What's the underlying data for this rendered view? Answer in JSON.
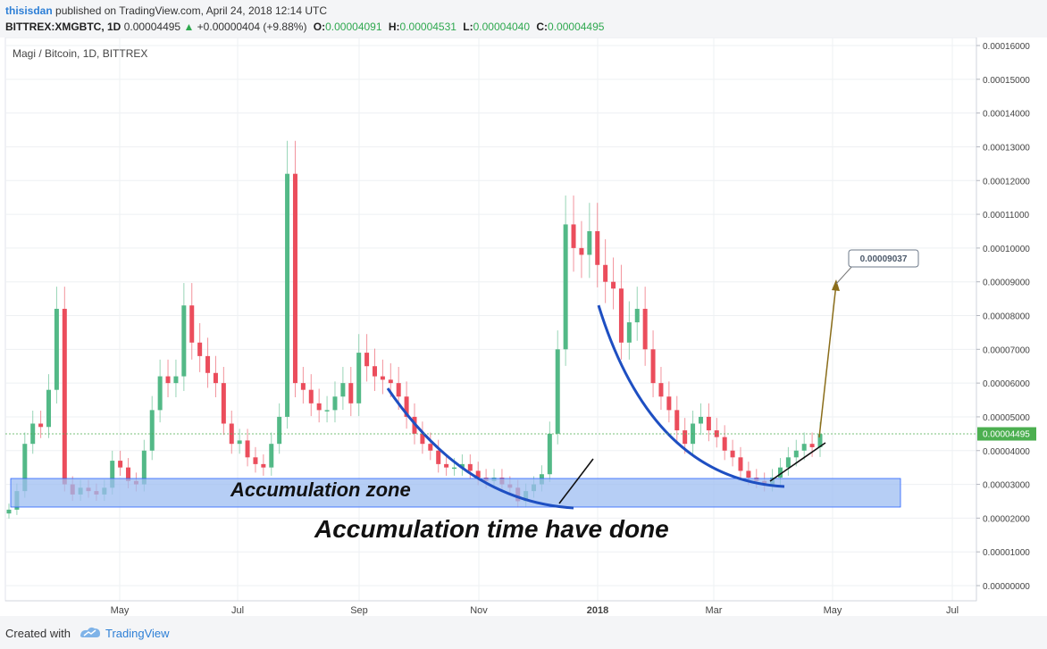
{
  "header": {
    "user": "thisisdan",
    "published_text": "published on TradingView.com, April 24, 2018 12:14 UTC",
    "symbol": "BITTREX:XMGBTC, 1D",
    "last": "0.00004495",
    "arrow": "▲",
    "change": "+0.00000404 (+9.88%)",
    "o_label": "O:",
    "o_value": "0.00004091",
    "h_label": "H:",
    "h_value": "0.00004531",
    "l_label": "L:",
    "l_value": "0.00004040",
    "c_label": "C:",
    "c_value": "0.00004495"
  },
  "chart_data": {
    "type": "candlestick",
    "title": "Magi / Bitcoin, 1D, BITTREX",
    "y_axis": {
      "ticks": [
        "0.00016000",
        "0.00015000",
        "0.00014000",
        "0.00013000",
        "0.00012000",
        "0.00011000",
        "0.00010000",
        "0.00009000",
        "0.00008000",
        "0.00007000",
        "0.00006000",
        "0.00005000",
        "0.00004000",
        "0.00003000",
        "0.00002000",
        "0.00001000",
        "0.00000000"
      ],
      "range": [
        -5e-07,
        0.0001605
      ]
    },
    "x_axis": {
      "ticks": [
        "May",
        "Jul",
        "Sep",
        "Nov",
        "2018",
        "Mar",
        "May",
        "Jul"
      ]
    },
    "last_price_label": "0.00004495",
    "target_label": "0.00009037",
    "annotations": {
      "zone_label": "Accumulation zone",
      "caption": "Accumulation time have done"
    },
    "series": [
      {
        "date": "2017-04",
        "values": [
          2.25e-05,
          2.8e-05,
          4.2e-05,
          4.8e-05,
          4.7e-05,
          5.8e-05,
          8.2e-05,
          3e-05,
          2.7e-05
        ]
      },
      {
        "date": "2017-05",
        "values": [
          2.9e-05,
          2.8e-05,
          2.7e-05,
          2.9e-05,
          3.7e-05,
          3.5e-05,
          3.1e-05
        ]
      },
      {
        "date": "2017-06",
        "values": [
          3e-05,
          4e-05,
          5.2e-05,
          6.2e-05,
          6e-05,
          6.2e-05,
          8.3e-05,
          7.2e-05
        ]
      },
      {
        "date": "2017-07",
        "values": [
          6.8e-05,
          6.3e-05,
          6e-05,
          4.8e-05,
          4.2e-05,
          4.3e-05,
          3.8e-05,
          3.6e-05
        ]
      },
      {
        "date": "2017-08",
        "values": [
          3.5e-05,
          4.2e-05,
          5e-05,
          0.000122,
          6e-05,
          5.8e-05,
          5.4e-05,
          5.2e-05
        ]
      },
      {
        "date": "2017-09",
        "values": [
          5.2e-05,
          5.6e-05,
          6e-05,
          5.4e-05,
          6.9e-05,
          6.5e-05,
          6.2e-05,
          6.1e-05
        ]
      },
      {
        "date": "2017-10",
        "values": [
          6e-05,
          5.6e-05,
          5e-05,
          4.5e-05,
          4.2e-05,
          4e-05,
          3.6e-05,
          3.5e-05
        ]
      },
      {
        "date": "2017-11",
        "values": [
          3.5e-05,
          3.6e-05,
          3.4e-05,
          3.2e-05,
          3.1e-05,
          3.2e-05,
          3e-05,
          2.9e-05
        ]
      },
      {
        "date": "2017-12",
        "values": [
          2.5e-05,
          2.8e-05,
          3e-05,
          3.3e-05,
          4.5e-05,
          7e-05,
          0.000107,
          0.0001
        ]
      },
      {
        "date": "2018-01",
        "values": [
          9.8e-05,
          0.000105,
          9.5e-05,
          9e-05,
          8.8e-05,
          7.2e-05,
          7.8e-05,
          8.2e-05
        ]
      },
      {
        "date": "2018-02",
        "values": [
          7e-05,
          6e-05,
          5.6e-05,
          5.2e-05,
          4.6e-05,
          4.2e-05,
          4.8e-05,
          5e-05
        ]
      },
      {
        "date": "2018-03",
        "values": [
          4.6e-05,
          4.4e-05,
          4e-05,
          3.8e-05,
          3.4e-05,
          3.2e-05,
          3.1e-05,
          3e-05
        ]
      },
      {
        "date": "2018-04",
        "values": [
          3.2e-05,
          3.5e-05,
          3.8e-05,
          4e-05,
          4.2e-05,
          4.1e-05,
          4.49e-05
        ]
      }
    ]
  },
  "footer": {
    "created": "Created with",
    "brand": "TradingView"
  }
}
